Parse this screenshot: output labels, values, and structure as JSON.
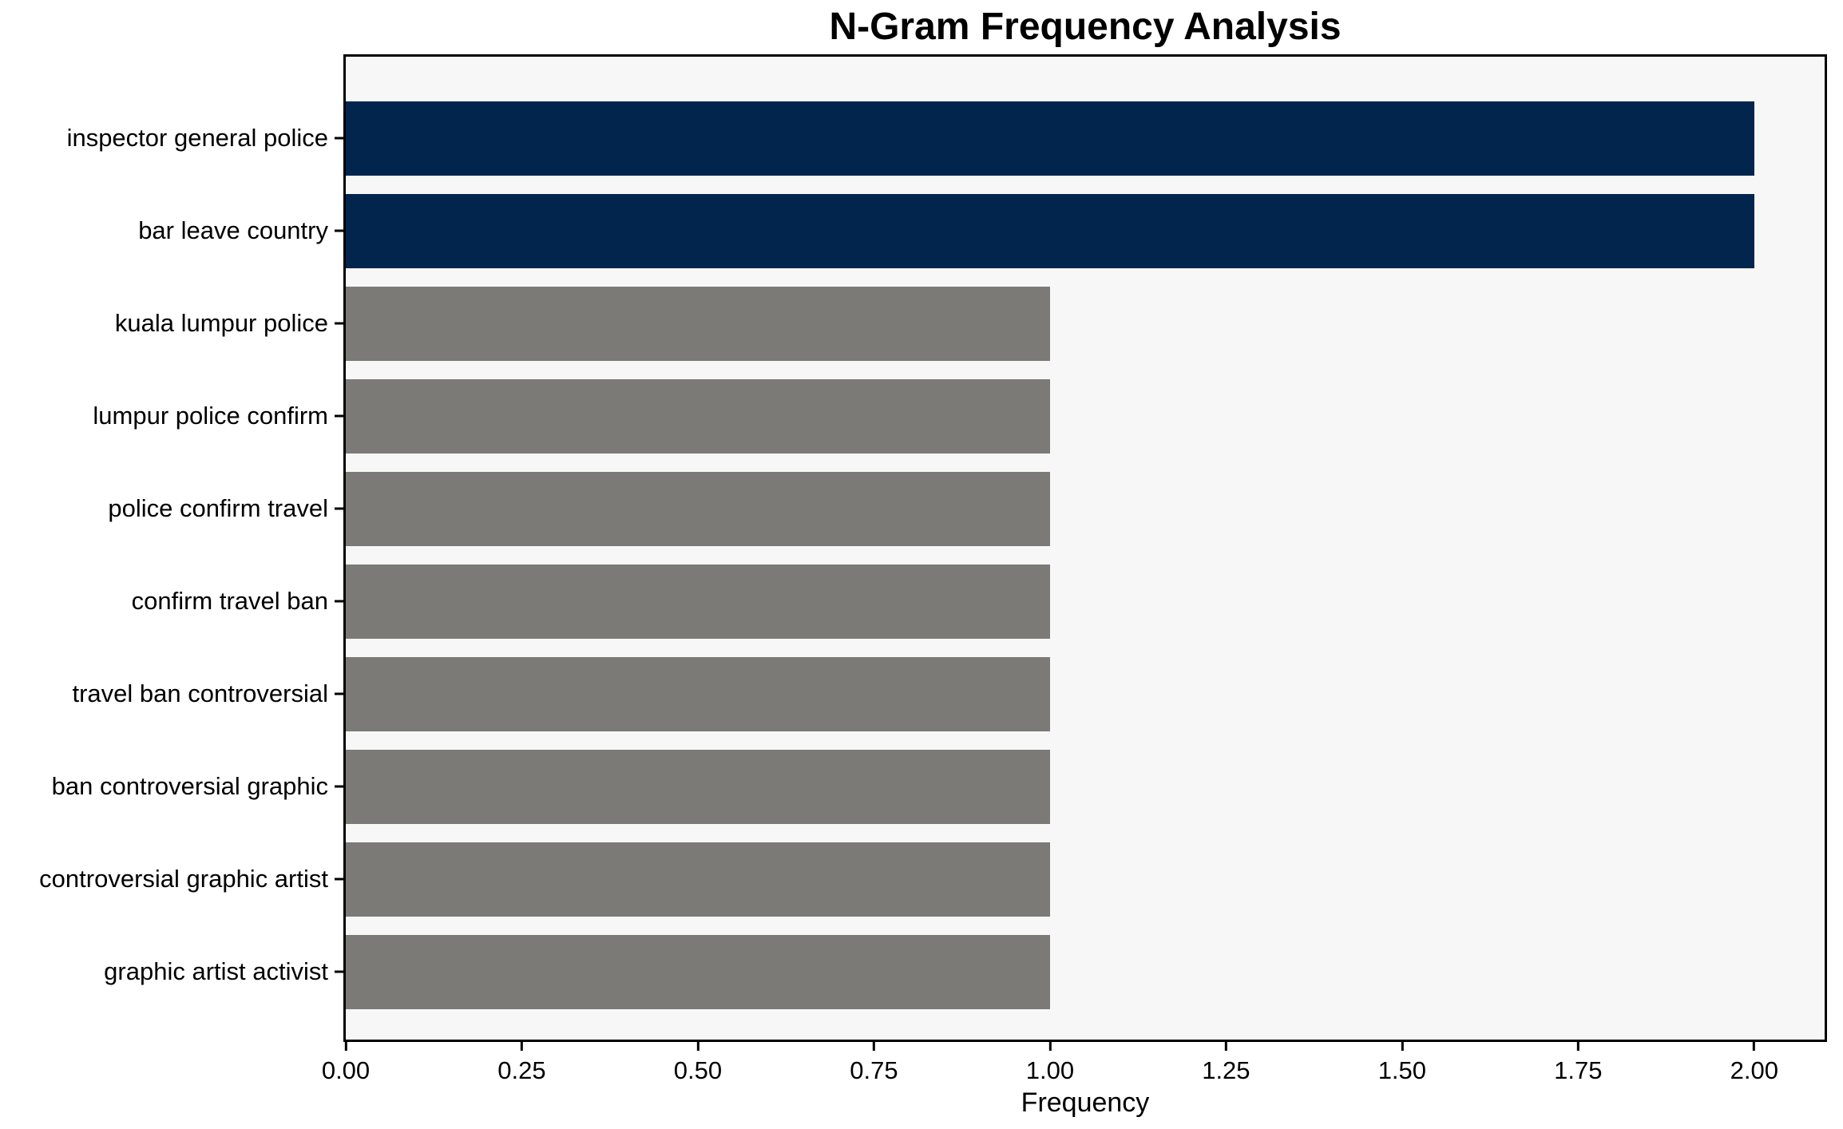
{
  "chart_data": {
    "type": "bar",
    "orientation": "horizontal",
    "title": "N-Gram Frequency Analysis",
    "xlabel": "Frequency",
    "categories": [
      "inspector general police",
      "bar leave country",
      "kuala lumpur police",
      "lumpur police confirm",
      "police confirm travel",
      "confirm travel ban",
      "travel ban controversial",
      "ban controversial graphic",
      "controversial graphic artist",
      "graphic artist activist"
    ],
    "values": [
      2,
      2,
      1,
      1,
      1,
      1,
      1,
      1,
      1,
      1
    ],
    "bar_colors": [
      "#02254e",
      "#02254e",
      "#7b7a77",
      "#7b7a77",
      "#7b7a77",
      "#7b7a77",
      "#7b7a77",
      "#7b7a77",
      "#7b7a77",
      "#7b7a77"
    ],
    "x_tick_labels": [
      "0.00",
      "0.25",
      "0.50",
      "0.75",
      "1.00",
      "1.25",
      "1.50",
      "1.75",
      "2.00"
    ],
    "x_tick_values": [
      0,
      0.25,
      0.5,
      0.75,
      1.0,
      1.25,
      1.5,
      1.75,
      2.0
    ],
    "xlim": [
      0,
      2.1
    ],
    "grid": false,
    "legend": null,
    "colors": {
      "highlight_bar": "#02254e",
      "default_bar": "#7b7a77",
      "plot_background": "#f7f7f7",
      "figure_background": "#ffffff",
      "spine": "#000000",
      "text": "#000000"
    }
  }
}
